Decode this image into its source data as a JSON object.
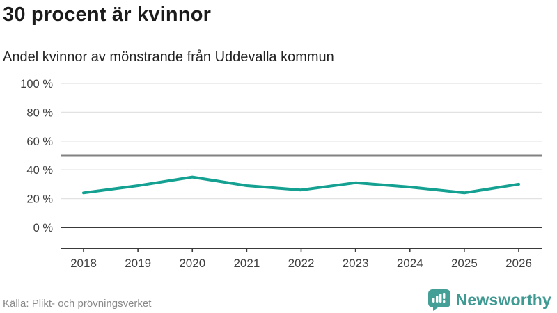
{
  "header": {
    "title": "30 procent är kvinnor",
    "subtitle": "Andel kvinnor av mönstrande från Uddevalla kommun"
  },
  "footer": {
    "source": "Källa: Plikt- och prövningsverket",
    "brand_name": "Newsworthy"
  },
  "colors": {
    "line": "#15a192",
    "grid": "#e2e2e2",
    "reference_line": "#828282",
    "zero_line": "#3a3a3a",
    "axis": "#3a3a3a",
    "tick_label": "#3f3f3f",
    "brand_teal": "#44a097"
  },
  "chart_data": {
    "type": "line",
    "title": "30 procent är kvinnor",
    "subtitle": "Andel kvinnor av mönstrande från Uddevalla kommun",
    "x": [
      2018,
      2019,
      2020,
      2021,
      2022,
      2023,
      2024,
      2025,
      2026
    ],
    "x_tick_labels": [
      "2018",
      "2019",
      "2020",
      "2021",
      "2022",
      "2023",
      "2024",
      "2025",
      "2026"
    ],
    "series": [
      {
        "name": "Andel kvinnor av mönstrande",
        "values": [
          24,
          29,
          35,
          29,
          26,
          31,
          28,
          24,
          30
        ]
      }
    ],
    "xlabel": "",
    "ylabel": "",
    "ylim": [
      0,
      100
    ],
    "yticks": [
      0,
      20,
      40,
      60,
      80,
      100
    ],
    "y_tick_labels": [
      "0 %",
      "20 %",
      "40 %",
      "60 %",
      "80 %",
      "100 %"
    ],
    "y_unit": "%",
    "reference_line_y": 50,
    "grid": "horizontal",
    "legend": "none",
    "source": "Källa: Plikt- och prövningsverket"
  }
}
